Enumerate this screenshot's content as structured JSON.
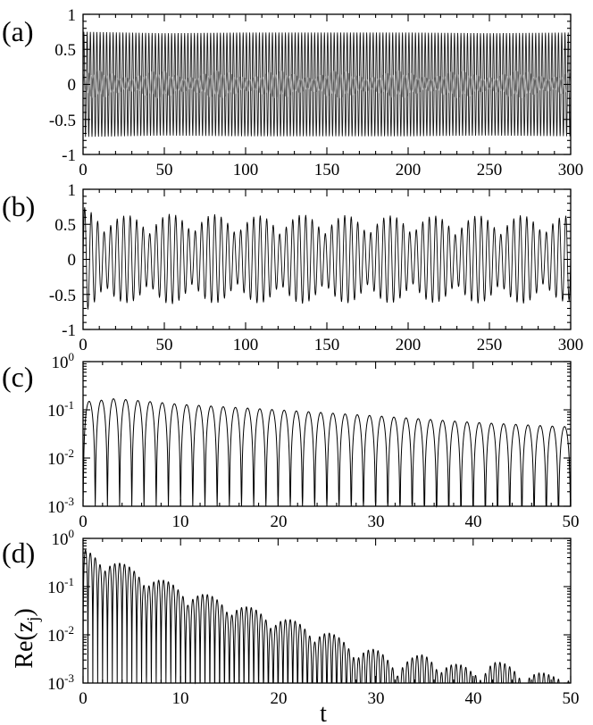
{
  "colors": {
    "panel_a_trace": "#1a1a1a",
    "panel_a_overlay": "#8a8a8a",
    "trace": "#000000"
  },
  "ylabel": "Re(z",
  "ylabel_sub": "j",
  "ylabel_close": ")",
  "xlabel": "t",
  "chart_data": [
    {
      "type": "line",
      "label": "(a)",
      "xlim": [
        0,
        300
      ],
      "ylim": [
        -1,
        1
      ],
      "xticks": [
        "0",
        "50",
        "100",
        "150",
        "200",
        "250",
        "300"
      ],
      "yticks": [
        "-1",
        "-0.5",
        "0",
        "0.5",
        "1"
      ],
      "series": [
        {
          "x": [
            0,
            50,
            100,
            150,
            200,
            250,
            300
          ],
          "y_max": [
            0.75,
            0.73,
            0.74,
            0.74,
            0.74,
            0.73,
            0.74
          ],
          "y_min": [
            -0.75,
            -0.73,
            -0.74,
            -0.74,
            -0.74,
            -0.73,
            -0.74
          ]
        }
      ],
      "overlay_envelope": [
        0.1,
        0.2
      ],
      "oscillation_period": 2.0
    },
    {
      "type": "line",
      "label": "(b)",
      "xlim": [
        0,
        300
      ],
      "ylim": [
        -1,
        1
      ],
      "xticks": [
        "0",
        "50",
        "100",
        "150",
        "200",
        "250",
        "300"
      ],
      "yticks": [
        "-1",
        "-0.5",
        "0",
        "0.5",
        "1"
      ],
      "series": [
        {
          "x": [
            0,
            25,
            50,
            75,
            100,
            125,
            150,
            175,
            200,
            225,
            250,
            275,
            300
          ],
          "y_max": [
            0.75,
            0.63,
            0.65,
            0.65,
            0.62,
            0.64,
            0.64,
            0.62,
            0.63,
            0.62,
            0.63,
            0.63,
            0.62
          ],
          "y_min": [
            -0.75,
            -0.62,
            -0.64,
            -0.63,
            -0.62,
            -0.64,
            -0.62,
            -0.63,
            -0.62,
            -0.62,
            -0.63,
            -0.63,
            -0.6
          ]
        }
      ],
      "oscillation_period": 4.0,
      "beat_period": 27
    },
    {
      "type": "line",
      "label": "(c)",
      "scale": "log",
      "xlim": [
        0,
        50
      ],
      "ylim": [
        0.001,
        1
      ],
      "xticks": [
        "0",
        "10",
        "20",
        "30",
        "40",
        "50"
      ],
      "yticks": [
        {
          "base": "10",
          "exp": "-3"
        },
        {
          "base": "10",
          "exp": "-2"
        },
        {
          "base": "10",
          "exp": "-1"
        },
        {
          "base": "10",
          "exp": "0"
        }
      ],
      "series": [
        {
          "x": [
            1.0,
            3.0,
            5.0,
            10.0,
            20.0,
            30.0,
            40.0,
            49.0
          ],
          "y_peak": [
            0.15,
            0.17,
            0.16,
            0.13,
            0.1,
            0.075,
            0.055,
            0.045
          ]
        }
      ],
      "oscillation_period": 1.25
    },
    {
      "type": "line",
      "label": "(d)",
      "scale": "log",
      "xlim": [
        0,
        50
      ],
      "ylim": [
        0.001,
        1
      ],
      "xticks": [
        "0",
        "10",
        "20",
        "30",
        "40",
        "50"
      ],
      "yticks": [
        {
          "base": "10",
          "exp": "-3"
        },
        {
          "base": "10",
          "exp": "-2"
        },
        {
          "base": "10",
          "exp": "-1"
        },
        {
          "base": "10",
          "exp": "0"
        }
      ],
      "series": [
        {
          "x": [
            0,
            2,
            5,
            10,
            15,
            20,
            25,
            28,
            30,
            32,
            35,
            37,
            40,
            42,
            45,
            48,
            50
          ],
          "y_peak": [
            0.6,
            0.45,
            0.25,
            0.1,
            0.05,
            0.025,
            0.012,
            0.006,
            0.005,
            0.003,
            0.004,
            0.003,
            0.002,
            0.003,
            0.002,
            0.0015,
            0.002
          ]
        }
      ],
      "oscillation_period": 0.5
    }
  ]
}
